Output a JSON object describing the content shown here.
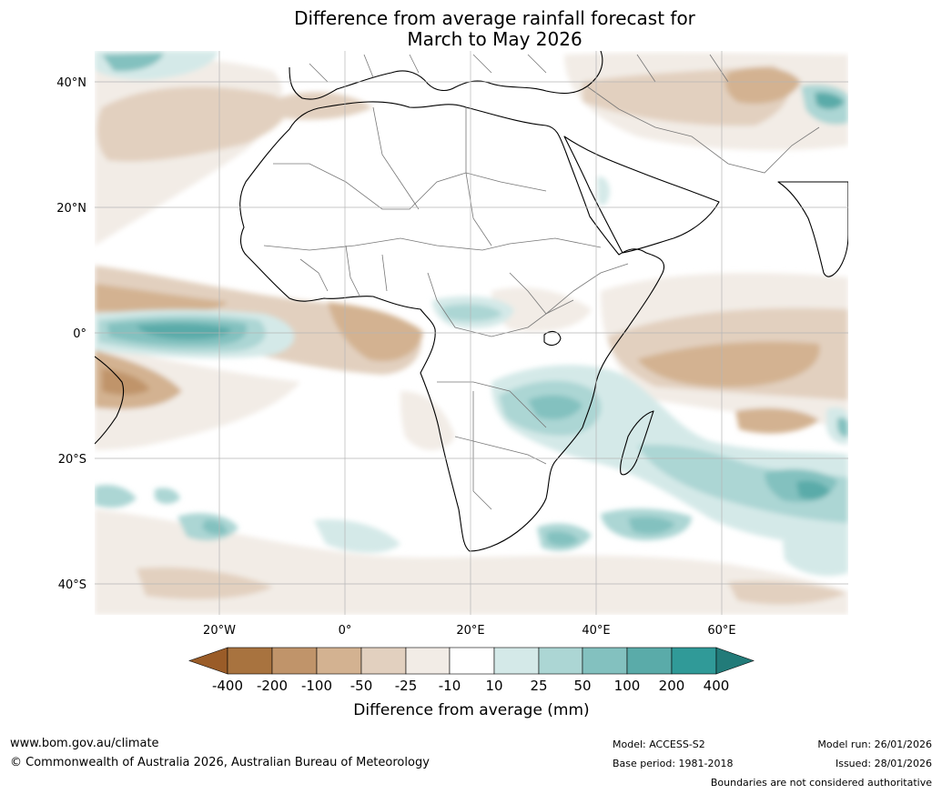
{
  "title": {
    "line1": "Difference from average rainfall forecast for",
    "line2": "March to May 2026"
  },
  "map": {
    "lat_labels": [
      "40°N",
      "20°N",
      "0°",
      "20°S",
      "40°S"
    ],
    "lon_labels": [
      "20°W",
      "0°",
      "20°E",
      "40°E",
      "60°E"
    ]
  },
  "legend": {
    "tick_labels": [
      "-400",
      "-200",
      "-100",
      "-50",
      "-25",
      "-10",
      "10",
      "25",
      "50",
      "100",
      "200",
      "400"
    ],
    "colors": {
      "lt_minus400": "#9a5c28",
      "bin_m400_m200": "#a8733f",
      "bin_m200_m100": "#c0946a",
      "bin_m100_m50": "#d3b291",
      "bin_m50_m25": "#e2d0bf",
      "bin_m25_m10": "#f2ece6",
      "bin_m10_10": "#ffffff",
      "bin_10_25": "#d4e9e8",
      "bin_25_50": "#acd6d4",
      "bin_50_100": "#83c1bf",
      "bin_100_200": "#5aaba9",
      "bin_200_400": "#309a98",
      "gt_400": "#227b79"
    },
    "title": "Difference from average (mm)"
  },
  "footer": {
    "website": "www.bom.gov.au/climate",
    "copyright": "© Commonwealth of Australia 2026, Australian Bureau of Meteorology",
    "model": "Model: ACCESS-S2",
    "base_period": "Base period: 1981-2018",
    "model_run": "Model run: 26/01/2026",
    "issued": "Issued: 28/01/2026",
    "disclaimer": "Boundaries are not considered authoritative"
  }
}
